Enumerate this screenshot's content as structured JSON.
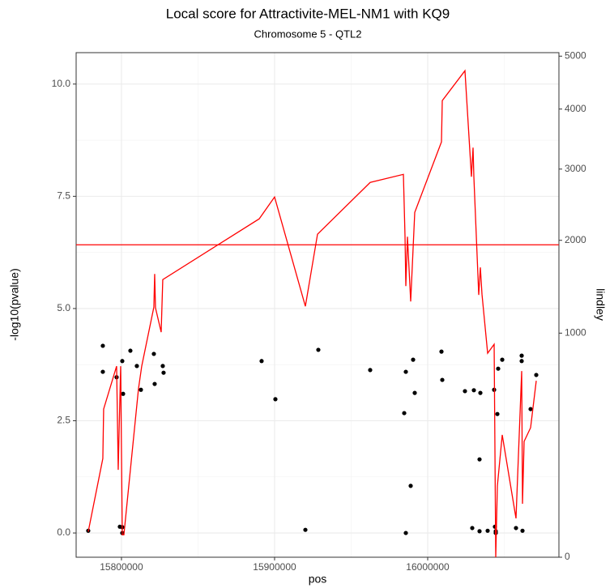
{
  "chart_data": {
    "type": "scatter",
    "title": "Local score for Attractivite-MEL-NM1 with KQ9",
    "subtitle": "Chromosome 5 - QTL2",
    "x_label": "pos",
    "y_label": "-log10(pvalue)",
    "y2_label": "lindley",
    "xlim": [
      15770400,
      16085700
    ],
    "xticks": [
      15800000,
      15900000,
      16000000
    ],
    "ylim": [
      -0.54,
      10.7
    ],
    "yticks": [
      {
        "value": 0,
        "label": "0.0"
      },
      {
        "value": 2.5,
        "label": "2.5"
      },
      {
        "value": 5,
        "label": "5.0"
      },
      {
        "value": 7.5,
        "label": "7.5"
      },
      {
        "value": 10,
        "label": "10.0"
      }
    ],
    "y2lim": [
      0,
      5070
    ],
    "y2scale": "sqrt",
    "y2ticks": [
      0,
      1000,
      2000,
      3000,
      4000,
      5000
    ],
    "grid": true,
    "series": [
      {
        "type": "scatter",
        "color": "#000000",
        "x": [
          15778300,
          15787830,
          15787830,
          15796830,
          15798940,
          15800530,
          15801060,
          15800530,
          15800530,
          15805820,
          15810050,
          15812700,
          15821160,
          15821690,
          15826980,
          15827510,
          15891530,
          15900530,
          15920110,
          15928570,
          15962430,
          15984660,
          15985720,
          15985720,
          15988890,
          15990480,
          15991540,
          16008990,
          16009520,
          16024330,
          16030150,
          16033860,
          16034390,
          16029100,
          16033860,
          16039150,
          16043390,
          16043910,
          16044440,
          16044440,
          16045500,
          16046030,
          16048680,
          16057670,
          16061380,
          16061380,
          16061910,
          16067200,
          16070900
        ],
        "values": [
          0.05,
          4.17,
          3.59,
          3.47,
          0.14,
          3.83,
          3.1,
          0.13,
          0,
          4.06,
          3.72,
          3.19,
          3.99,
          3.32,
          3.72,
          3.57,
          3.83,
          2.98,
          0.07,
          4.08,
          3.63,
          2.67,
          3.59,
          0,
          1.05,
          3.86,
          3.12,
          4.04,
          3.41,
          3.16,
          3.18,
          1.64,
          3.12,
          0.11,
          0.04,
          0.05,
          3.19,
          0.14,
          0,
          0.04,
          2.65,
          3.66,
          3.86,
          0.11,
          3.95,
          3.83,
          0.05,
          2.76,
          3.52
        ]
      },
      {
        "type": "line",
        "axis": "y2",
        "color": "#ff0000",
        "x": [
          15778300,
          15787830,
          15788360,
          15796830,
          15797880,
          15799470,
          15800530,
          15801590,
          15806880,
          15811110,
          15813230,
          15821160,
          15821690,
          15822220,
          15825930,
          15826980,
          15889950,
          15900000,
          15920110,
          15928040,
          15962430,
          15984130,
          15985190,
          15985720,
          15986780,
          15988890,
          15991540,
          16008990,
          16009520,
          16024330,
          16028560,
          16029620,
          16030150,
          16033330,
          16034390,
          16035450,
          16039150,
          16043390,
          16044440,
          16045500,
          16048680,
          16057670,
          16061380,
          16061910,
          16062970,
          16067200,
          16070900
        ],
        "values": [
          13,
          194,
          437,
          727,
          152,
          727,
          10,
          10,
          214,
          565,
          727,
          1246,
          1598,
          1238,
          1009,
          1535,
          2280,
          2584,
          1254,
          2078,
          2797,
          2919,
          2046,
          1464,
          2046,
          1303,
          2368,
          3434,
          4151,
          4713,
          2883,
          3341,
          2883,
          1370,
          1673,
          1378,
          829,
          903,
          0,
          101,
          298,
          30,
          690,
          57,
          267,
          334,
          620
        ]
      }
    ],
    "hline": {
      "value": 1944,
      "axis": "y2",
      "color": "#ff0000"
    }
  }
}
